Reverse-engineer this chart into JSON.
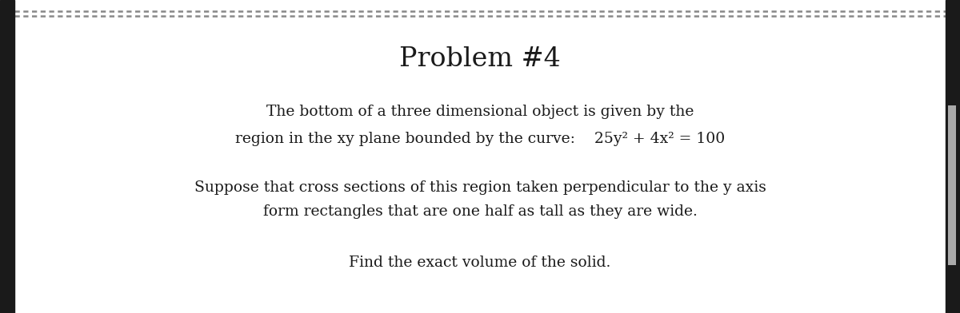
{
  "title": "Problem #4",
  "title_fontsize": 24,
  "title_bold": false,
  "line1": "The bottom of a three dimensional object is given by the",
  "line2": "region in the xy plane bounded by the curve:    25y² + 4x² = 100",
  "line3": "Suppose that cross sections of this region taken perpendicular to the y axis",
  "line4": "form rectangles that are one half as tall as they are wide.",
  "line5": "Find the exact volume of the solid.",
  "body_fontsize": 13.5,
  "background_color": "#ffffff",
  "text_color": "#1a1a1a",
  "separator_color": "#888888",
  "fig_width": 12.0,
  "fig_height": 3.92,
  "bg_left": "#1a1a1a",
  "bg_right": "#1a1a1a",
  "scrollbar_color": "#aaaaaa"
}
